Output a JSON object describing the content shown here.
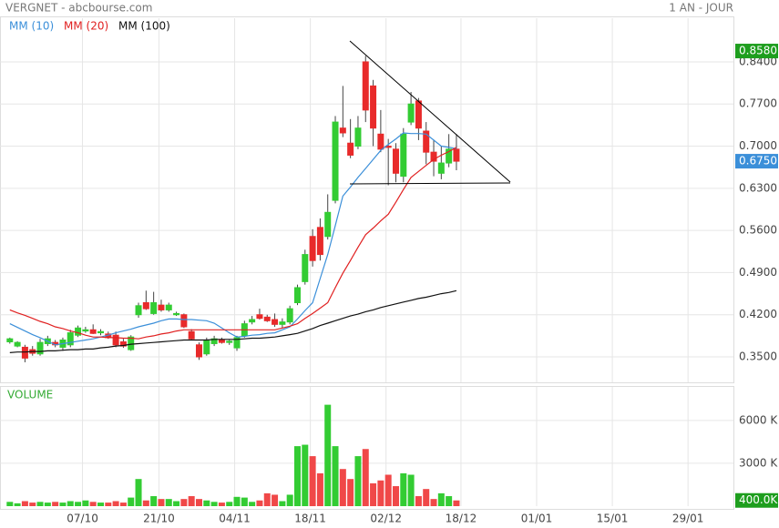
{
  "chart_data": [
    {
      "type": "candlestick",
      "title": "VERGNET - abcbourse.com",
      "subtitle": "1 AN - JOUR",
      "open": [
        0.375,
        0.368,
        0.366,
        0.362,
        0.355,
        0.372,
        0.374,
        0.366,
        0.37,
        0.386,
        0.393,
        0.395,
        0.39,
        0.388,
        0.386,
        0.375,
        0.362,
        0.42,
        0.44,
        0.422,
        0.436,
        0.428,
        0.42,
        0.42,
        0.392,
        0.37,
        0.355,
        0.372,
        0.378,
        0.374,
        0.365,
        0.385,
        0.408,
        0.42,
        0.416,
        0.412,
        0.404,
        0.408,
        0.44,
        0.475,
        0.55,
        0.565,
        0.55,
        0.61,
        0.73,
        0.705,
        0.7,
        0.84,
        0.8,
        0.72,
        0.7,
        0.695,
        0.65,
        0.74,
        0.775,
        0.725,
        0.69,
        0.655,
        0.672,
        0.695
      ],
      "high": [
        0.382,
        0.376,
        0.37,
        0.368,
        0.38,
        0.385,
        0.378,
        0.382,
        0.395,
        0.402,
        0.4,
        0.404,
        0.396,
        0.392,
        0.392,
        0.38,
        0.386,
        0.44,
        0.46,
        0.458,
        0.445,
        0.44,
        0.425,
        0.422,
        0.396,
        0.374,
        0.382,
        0.385,
        0.382,
        0.378,
        0.385,
        0.41,
        0.418,
        0.43,
        0.42,
        0.422,
        0.414,
        0.435,
        0.47,
        0.528,
        0.562,
        0.58,
        0.62,
        0.75,
        0.8,
        0.745,
        0.75,
        0.85,
        0.81,
        0.76,
        0.712,
        0.705,
        0.73,
        0.79,
        0.78,
        0.74,
        0.71,
        0.7,
        0.72,
        0.72
      ],
      "low": [
        0.372,
        0.366,
        0.341,
        0.352,
        0.352,
        0.368,
        0.366,
        0.36,
        0.366,
        0.383,
        0.39,
        0.388,
        0.386,
        0.38,
        0.366,
        0.365,
        0.36,
        0.415,
        0.428,
        0.42,
        0.425,
        0.425,
        0.418,
        0.398,
        0.378,
        0.345,
        0.352,
        0.368,
        0.372,
        0.37,
        0.36,
        0.382,
        0.404,
        0.412,
        0.408,
        0.4,
        0.398,
        0.404,
        0.436,
        0.47,
        0.5,
        0.51,
        0.545,
        0.605,
        0.715,
        0.68,
        0.695,
        0.74,
        0.7,
        0.69,
        0.635,
        0.64,
        0.64,
        0.735,
        0.71,
        0.67,
        0.65,
        0.645,
        0.665,
        0.66
      ],
      "close": [
        0.38,
        0.374,
        0.348,
        0.356,
        0.374,
        0.38,
        0.37,
        0.378,
        0.39,
        0.398,
        0.395,
        0.389,
        0.392,
        0.382,
        0.37,
        0.368,
        0.383,
        0.435,
        0.43,
        0.44,
        0.428,
        0.436,
        0.422,
        0.4,
        0.38,
        0.35,
        0.378,
        0.38,
        0.374,
        0.376,
        0.382,
        0.405,
        0.412,
        0.414,
        0.41,
        0.404,
        0.408,
        0.43,
        0.465,
        0.52,
        0.51,
        0.52,
        0.59,
        0.74,
        0.722,
        0.685,
        0.73,
        0.76,
        0.73,
        0.695,
        0.698,
        0.655,
        0.72,
        0.77,
        0.73,
        0.69,
        0.675,
        0.672,
        0.695,
        0.675
      ],
      "up_color": "#33cc33",
      "down_color": "#e82a2a",
      "series": [
        {
          "name": "MM (10)",
          "color": "#3b8fd9",
          "values": [
            0.405,
            0.399,
            0.393,
            0.387,
            0.382,
            0.376,
            0.37,
            0.372,
            0.374,
            0.376,
            0.378,
            0.38,
            0.383,
            0.386,
            0.39,
            0.393,
            0.396,
            0.4,
            0.403,
            0.406,
            0.41,
            0.413,
            0.413,
            0.412,
            0.412,
            0.411,
            0.41,
            0.406,
            0.398,
            0.39,
            0.383,
            0.384,
            0.386,
            0.387,
            0.389,
            0.39,
            0.395,
            0.4,
            0.413,
            0.427,
            0.44,
            0.48,
            0.52,
            0.568,
            0.617,
            0.632,
            0.648,
            0.663,
            0.678,
            0.693,
            0.703,
            0.712,
            0.722,
            0.721,
            0.721,
            0.72,
            0.71,
            0.7,
            0.698,
            0.696
          ]
        },
        {
          "name": "MM (20)",
          "color": "#e02020",
          "values": [
            0.428,
            0.423,
            0.419,
            0.414,
            0.409,
            0.405,
            0.4,
            0.397,
            0.393,
            0.39,
            0.386,
            0.383,
            0.383,
            0.382,
            0.382,
            0.381,
            0.381,
            0.38,
            0.383,
            0.385,
            0.388,
            0.39,
            0.393,
            0.395,
            0.395,
            0.395,
            0.395,
            0.395,
            0.395,
            0.395,
            0.395,
            0.395,
            0.395,
            0.395,
            0.395,
            0.395,
            0.398,
            0.401,
            0.405,
            0.414,
            0.422,
            0.431,
            0.44,
            0.465,
            0.489,
            0.51,
            0.532,
            0.553,
            0.564,
            0.576,
            0.587,
            0.607,
            0.628,
            0.648,
            0.658,
            0.668,
            0.678,
            0.685,
            0.691,
            0.698
          ]
        },
        {
          "name": "MM (100)",
          "color": "#111111",
          "values": [
            0.357,
            0.358,
            0.358,
            0.359,
            0.359,
            0.36,
            0.36,
            0.361,
            0.362,
            0.362,
            0.363,
            0.363,
            0.365,
            0.366,
            0.368,
            0.369,
            0.371,
            0.372,
            0.373,
            0.374,
            0.375,
            0.376,
            0.377,
            0.378,
            0.378,
            0.378,
            0.378,
            0.379,
            0.379,
            0.379,
            0.379,
            0.38,
            0.381,
            0.381,
            0.382,
            0.383,
            0.385,
            0.387,
            0.389,
            0.393,
            0.397,
            0.402,
            0.406,
            0.41,
            0.414,
            0.418,
            0.421,
            0.425,
            0.428,
            0.432,
            0.435,
            0.438,
            0.441,
            0.444,
            0.447,
            0.449,
            0.452,
            0.455,
            0.457,
            0.46
          ]
        }
      ],
      "xlim": [
        -1.3,
        95.6
      ],
      "ylim": [
        0.3077,
        0.9125
      ],
      "yticks": [
        {
          "value": 0.35,
          "label": "0.3500"
        },
        {
          "value": 0.42,
          "label": "0.4200"
        },
        {
          "value": 0.49,
          "label": "0.4900"
        },
        {
          "value": 0.56,
          "label": "0.5600"
        },
        {
          "value": 0.63,
          "label": "0.6300"
        },
        {
          "value": 0.7,
          "label": "0.7000"
        },
        {
          "value": 0.77,
          "label": "0.7700"
        },
        {
          "value": 0.84,
          "label": "0.8400"
        }
      ],
      "grid": true,
      "price_markers": [
        {
          "value": 0.858,
          "label": "0.8580",
          "color": "#1e9e1e"
        },
        {
          "value": 0.675,
          "label": "0.6750",
          "color": "#3b8fd9"
        }
      ]
    },
    {
      "type": "bar",
      "title": "VOLUME",
      "values": [
        300,
        200,
        350,
        250,
        300,
        250,
        300,
        250,
        350,
        300,
        400,
        300,
        250,
        250,
        350,
        250,
        600,
        1900,
        400,
        700,
        500,
        500,
        350,
        500,
        700,
        500,
        400,
        300,
        250,
        300,
        650,
        600,
        300,
        400,
        900,
        800,
        350,
        800,
        4200,
        4300,
        3500,
        2300,
        7100,
        4200,
        2600,
        1900,
        3500,
        4000,
        1600,
        1800,
        2200,
        1400,
        2300,
        2200,
        700,
        1200,
        500,
        900,
        700,
        400
      ],
      "up_color": "#33cc33",
      "down_color": "#f04848",
      "xlim": [
        -1.3,
        95.6
      ],
      "ylim": [
        0,
        8350
      ],
      "xticks": [
        {
          "value": 9.6,
          "label": "07/10"
        },
        {
          "value": 19.7,
          "label": "21/10"
        },
        {
          "value": 29.7,
          "label": "04/11"
        },
        {
          "value": 39.7,
          "label": "18/11"
        },
        {
          "value": 49.7,
          "label": "02/12"
        },
        {
          "value": 59.6,
          "label": "18/12"
        },
        {
          "value": 69.6,
          "label": "01/01"
        },
        {
          "value": 79.6,
          "label": "15/01"
        },
        {
          "value": 89.6,
          "label": "29/01"
        }
      ],
      "yticks": [
        {
          "value": 3000,
          "label": "3000 K"
        },
        {
          "value": 6000,
          "label": "6000 K"
        }
      ],
      "grid": true,
      "last_marker": {
        "value": 400,
        "label": "400.0K",
        "color": "#1e9e1e"
      }
    }
  ]
}
